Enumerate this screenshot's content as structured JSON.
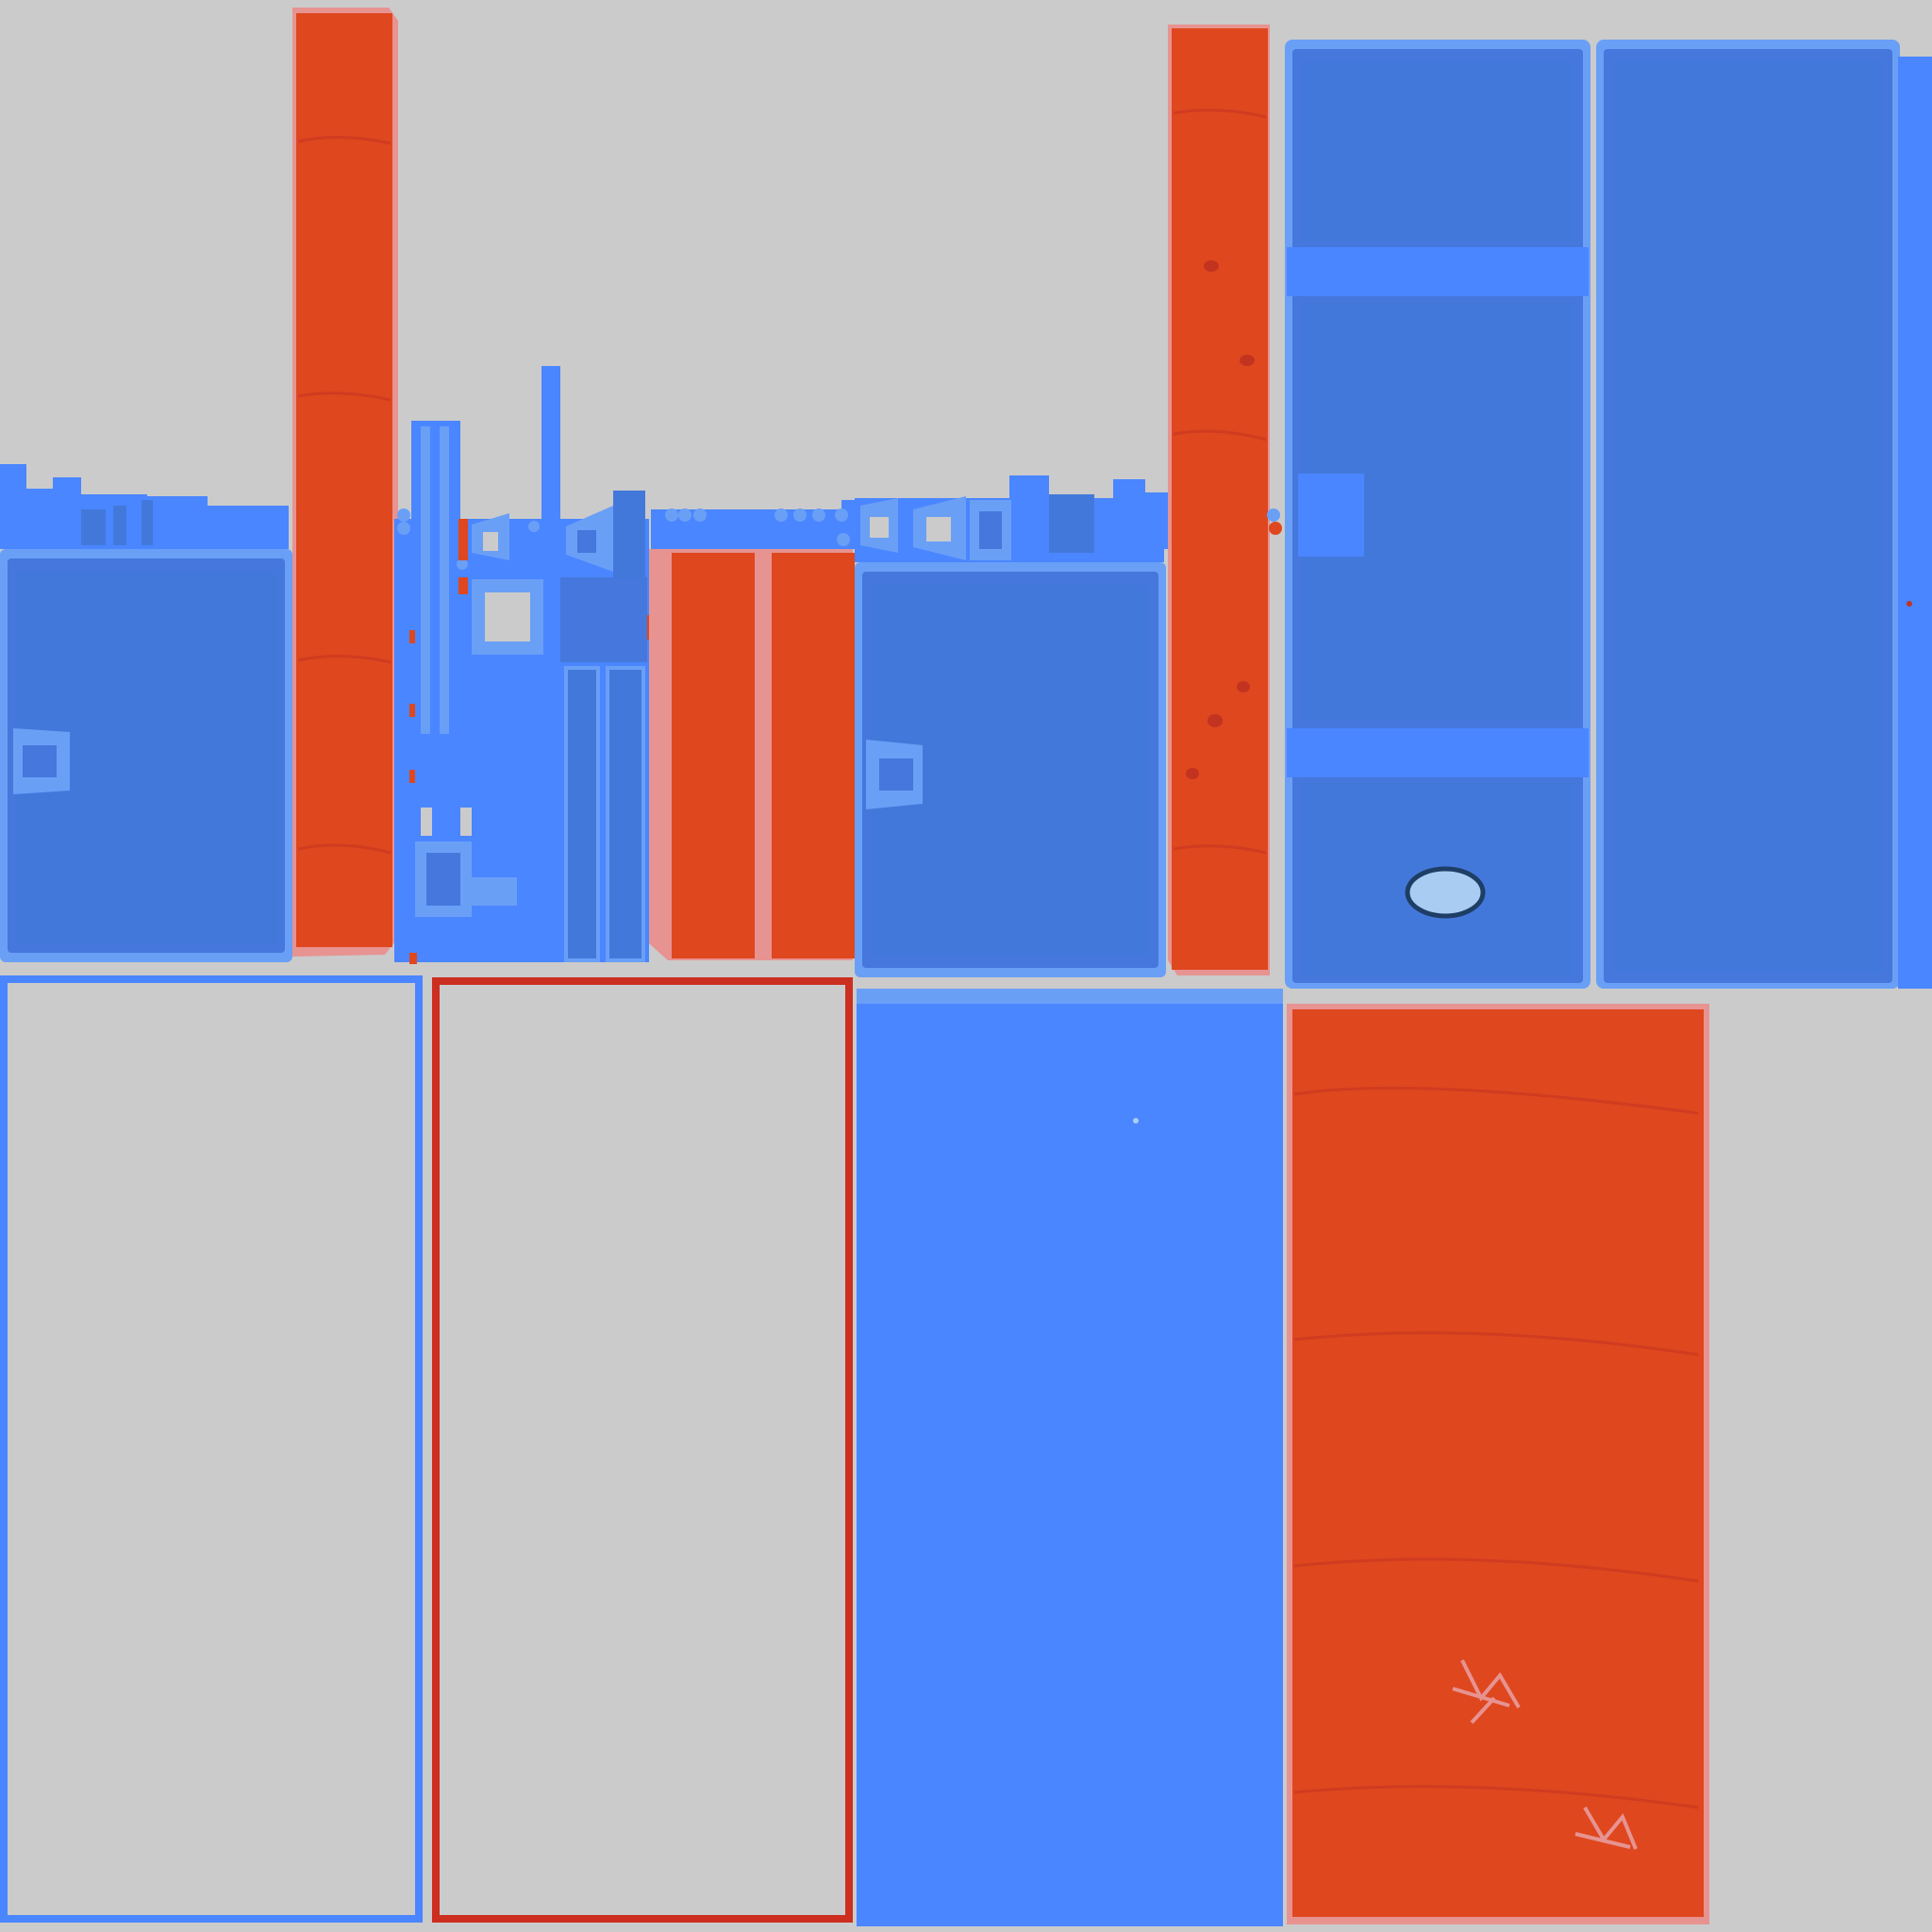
{
  "texture_atlas": {
    "background": "#CBCBCB",
    "palette": {
      "blue_base": "#4A86FF",
      "blue_light": "#6A9FF6",
      "blue_dark": "#4378DB",
      "blue_inner": "#4577DC",
      "blue_deep": "#2E5DBD",
      "red_base": "#DF471F",
      "red_dark": "#C23320",
      "red_edge": "#E79391",
      "red_outline": "#CC2E20",
      "ice": "#A9CDF2",
      "ice_outline": "#1F3E66"
    },
    "description": []
  }
}
